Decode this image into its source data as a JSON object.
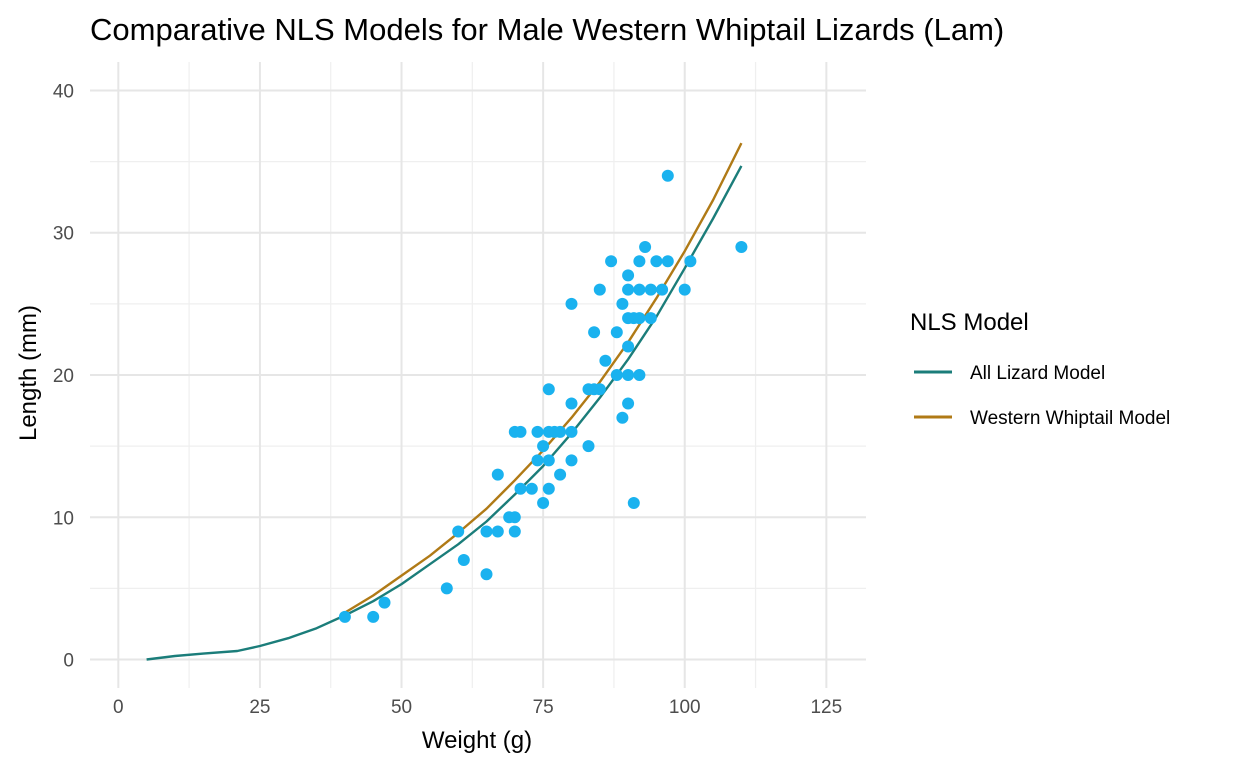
{
  "chart_data": {
    "type": "scatter",
    "title": "Comparative NLS Models for Male Western Whiptail Lizards (Lam)",
    "xlabel": "Weight (g)",
    "ylabel": "Length (mm)",
    "xlim": [
      -5,
      132
    ],
    "ylim": [
      -2,
      42
    ],
    "x_ticks": [
      0,
      25,
      50,
      75,
      100,
      125
    ],
    "y_ticks": [
      0,
      10,
      20,
      30,
      40
    ],
    "grid": true,
    "legend": {
      "title": "NLS Model",
      "placement": "right",
      "entries": [
        "All Lizard Model",
        "Western Whiptail Model"
      ]
    },
    "points": {
      "color": "#1ab2ef",
      "x": [
        40,
        45,
        47,
        58,
        60,
        61,
        65,
        65,
        67,
        67,
        69,
        70,
        70,
        70,
        71,
        71,
        73,
        74,
        74,
        75,
        75,
        76,
        76,
        76,
        76,
        77,
        78,
        78,
        80,
        80,
        80,
        80,
        83,
        83,
        84,
        84,
        85,
        85,
        86,
        87,
        88,
        88,
        89,
        89,
        90,
        90,
        90,
        90,
        90,
        90,
        91,
        91,
        92,
        92,
        92,
        92,
        93,
        94,
        94,
        95,
        96,
        97,
        97,
        100,
        101,
        110
      ],
      "y": [
        3,
        3,
        4,
        5,
        9,
        7,
        9,
        6,
        13,
        9,
        10,
        10,
        9,
        16,
        12,
        16,
        12,
        16,
        14,
        15,
        11,
        19,
        16,
        14,
        12,
        16,
        13,
        16,
        25,
        18,
        16,
        14,
        19,
        15,
        23,
        19,
        26,
        19,
        21,
        28,
        23,
        20,
        25,
        17,
        27,
        26,
        24,
        22,
        20,
        18,
        24,
        11,
        28,
        26,
        24,
        20,
        29,
        26,
        24,
        28,
        26,
        34,
        28,
        26,
        28,
        29
      ]
    },
    "series": [
      {
        "name": "All Lizard Model",
        "color": "#1b7d7a",
        "x": [
          5,
          10,
          15,
          21,
          25,
          30,
          35,
          40,
          45,
          50,
          55,
          60,
          65,
          70,
          75,
          80,
          85,
          90,
          95,
          100,
          105,
          110
        ],
        "y": [
          0,
          0.25,
          0.42,
          0.6,
          0.95,
          1.5,
          2.2,
          3.1,
          4.1,
          5.3,
          6.7,
          8.1,
          9.7,
          11.6,
          13.6,
          15.9,
          18.4,
          21.1,
          24.1,
          27.5,
          31.0,
          34.7
        ]
      },
      {
        "name": "Western Whiptail Model",
        "color": "#b07a16",
        "x": [
          40,
          45,
          50,
          55,
          60,
          65,
          70,
          75,
          80,
          85,
          90,
          95,
          100,
          105,
          110
        ],
        "y": [
          3.3,
          4.5,
          5.9,
          7.3,
          8.9,
          10.6,
          12.6,
          14.7,
          17.0,
          19.5,
          22.3,
          25.4,
          28.7,
          32.3,
          36.3
        ]
      }
    ]
  }
}
